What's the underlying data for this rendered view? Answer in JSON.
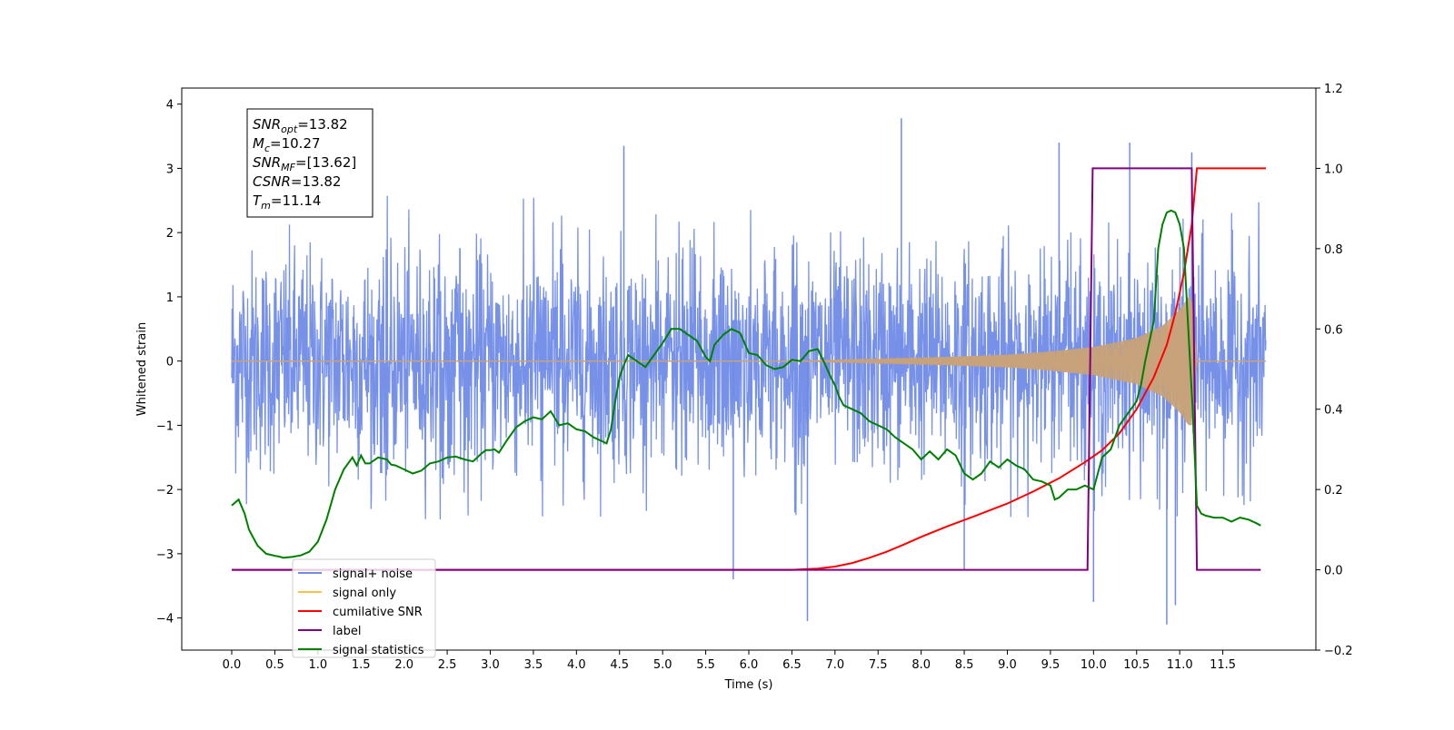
{
  "chart_data": {
    "type": "line",
    "xlabel": "Time (s)",
    "ylabel": "Whitened strain",
    "xlim": [
      -0.58,
      12.58
    ],
    "ylim_left": [
      -4.5,
      4.25
    ],
    "ylim_right": [
      -0.2,
      1.2
    ],
    "x_ticks": [
      "0.0",
      "0.5",
      "1.0",
      "1.5",
      "2.0",
      "2.5",
      "3.0",
      "3.5",
      "4.0",
      "4.5",
      "5.0",
      "5.5",
      "6.0",
      "6.5",
      "7.0",
      "7.5",
      "8.0",
      "8.5",
      "9.0",
      "9.5",
      "10.0",
      "10.5",
      "11.0",
      "11.5"
    ],
    "y_ticks_left": [
      "4",
      "3",
      "2",
      "1",
      "0",
      "−1",
      "−2",
      "−3",
      "−4"
    ],
    "y_ticks_right": [
      "1.2",
      "1.0",
      "0.8",
      "0.6",
      "0.4",
      "0.2",
      "0.0",
      "−0.2"
    ],
    "grid": false,
    "legend_position": "lower-left",
    "colors": {
      "noise": "#6f8be6",
      "signal": "#c7a27a",
      "signal_legend": "#ffbf4d",
      "snr": "#ff0000",
      "label": "#800080",
      "stats": "#008000"
    },
    "annotation": {
      "lines": [
        {
          "sym": "SNR",
          "sub": "opt",
          "val": "=13.82"
        },
        {
          "sym": "M",
          "sub": "c",
          "val": "=10.27"
        },
        {
          "sym": "SNR",
          "sub": "MF",
          "val": "=[13.62]"
        },
        {
          "sym": "CSNR",
          "sub": "",
          "val": "=13.82"
        },
        {
          "sym": "T",
          "sub": "m",
          "val": "=11.14"
        }
      ]
    },
    "series": [
      {
        "name": "signal+ noise",
        "axis": "left",
        "style": "noise",
        "x_range": [
          0.0,
          12.0
        ],
        "typical_envelope": [
          -1.7,
          2.2
        ],
        "notable_peaks": [
          {
            "x": 7.77,
            "y": 3.78
          },
          {
            "x": 10.42,
            "y": 3.4
          },
          {
            "x": 4.55,
            "y": 3.35
          },
          {
            "x": 9.6,
            "y": 3.4
          },
          {
            "x": 11.14,
            "y": 3.25
          },
          {
            "x": 10.85,
            "y": -4.1
          },
          {
            "x": 6.68,
            "y": -4.05
          },
          {
            "x": 10.95,
            "y": -3.8
          },
          {
            "x": 5.82,
            "y": -3.4
          },
          {
            "x": 10.0,
            "y": -3.75
          },
          {
            "x": 8.5,
            "y": -3.25
          }
        ]
      },
      {
        "name": "signal only",
        "axis": "left",
        "style": "chirp",
        "x_range": [
          0.0,
          12.0
        ],
        "merger_time": 11.14,
        "envelope_points": [
          [
            6.5,
            0.0
          ],
          [
            7.0,
            0.02
          ],
          [
            8.0,
            0.05
          ],
          [
            9.0,
            0.1
          ],
          [
            9.5,
            0.15
          ],
          [
            10.0,
            0.22
          ],
          [
            10.5,
            0.36
          ],
          [
            10.8,
            0.55
          ],
          [
            11.0,
            0.8
          ],
          [
            11.1,
            1.0
          ],
          [
            11.14,
            1.0
          ],
          [
            11.2,
            0.0
          ]
        ]
      },
      {
        "name": "cumilative SNR",
        "axis": "right",
        "x": [
          0.0,
          6.5,
          6.8,
          7.0,
          7.2,
          7.4,
          7.6,
          7.8,
          8.0,
          8.3,
          8.6,
          9.0,
          9.3,
          9.6,
          9.9,
          10.1,
          10.3,
          10.5,
          10.7,
          10.85,
          10.95,
          11.05,
          11.14,
          11.2,
          12.0
        ],
        "values": [
          0.0,
          0.0,
          0.003,
          0.008,
          0.017,
          0.03,
          0.045,
          0.063,
          0.082,
          0.108,
          0.132,
          0.165,
          0.195,
          0.228,
          0.268,
          0.298,
          0.34,
          0.4,
          0.48,
          0.56,
          0.64,
          0.74,
          0.86,
          1.0,
          1.0
        ]
      },
      {
        "name": "label",
        "axis": "right",
        "x": [
          0.0,
          9.93,
          9.99,
          11.14,
          11.2,
          11.94
        ],
        "values": [
          0.0,
          0.0,
          1.0,
          1.0,
          0.0,
          0.0
        ]
      },
      {
        "name": "signal statistics",
        "axis": "right",
        "x": [
          0.0,
          0.08,
          0.15,
          0.2,
          0.25,
          0.3,
          0.35,
          0.4,
          0.5,
          0.55,
          0.6,
          0.7,
          0.8,
          0.9,
          1.0,
          1.1,
          1.2,
          1.3,
          1.4,
          1.45,
          1.5,
          1.55,
          1.6,
          1.7,
          1.8,
          1.85,
          1.9,
          2.0,
          2.1,
          2.2,
          2.3,
          2.4,
          2.5,
          2.6,
          2.7,
          2.8,
          2.9,
          2.95,
          3.0,
          3.05,
          3.1,
          3.2,
          3.3,
          3.4,
          3.5,
          3.6,
          3.7,
          3.8,
          3.9,
          4.0,
          4.1,
          4.2,
          4.3,
          4.35,
          4.4,
          4.45,
          4.5,
          4.55,
          4.6,
          4.7,
          4.8,
          4.9,
          5.0,
          5.1,
          5.2,
          5.3,
          5.4,
          5.5,
          5.55,
          5.6,
          5.7,
          5.8,
          5.9,
          6.0,
          6.1,
          6.2,
          6.3,
          6.4,
          6.5,
          6.6,
          6.7,
          6.8,
          6.9,
          6.95,
          7.0,
          7.05,
          7.1,
          7.2,
          7.3,
          7.4,
          7.5,
          7.6,
          7.7,
          7.8,
          7.9,
          8.0,
          8.1,
          8.2,
          8.3,
          8.4,
          8.5,
          8.6,
          8.7,
          8.8,
          8.9,
          9.0,
          9.1,
          9.2,
          9.3,
          9.4,
          9.5,
          9.55,
          9.6,
          9.7,
          9.8,
          9.9,
          10.0,
          10.1,
          10.2,
          10.3,
          10.4,
          10.5,
          10.55,
          10.6,
          10.7,
          10.75,
          10.8,
          10.85,
          10.9,
          10.95,
          11.0,
          11.05,
          11.1,
          11.15,
          11.2,
          11.25,
          11.3,
          11.4,
          11.5,
          11.6,
          11.7,
          11.8,
          11.9,
          11.94
        ],
        "values": [
          0.16,
          0.175,
          0.14,
          0.1,
          0.08,
          0.06,
          0.05,
          0.04,
          0.035,
          0.033,
          0.03,
          0.032,
          0.036,
          0.045,
          0.07,
          0.125,
          0.2,
          0.25,
          0.28,
          0.26,
          0.285,
          0.265,
          0.265,
          0.28,
          0.275,
          0.262,
          0.26,
          0.25,
          0.24,
          0.247,
          0.265,
          0.27,
          0.28,
          0.282,
          0.275,
          0.27,
          0.29,
          0.298,
          0.298,
          0.3,
          0.292,
          0.325,
          0.355,
          0.37,
          0.38,
          0.375,
          0.395,
          0.36,
          0.365,
          0.35,
          0.345,
          0.33,
          0.32,
          0.315,
          0.35,
          0.42,
          0.48,
          0.51,
          0.535,
          0.52,
          0.505,
          0.535,
          0.565,
          0.6,
          0.6,
          0.585,
          0.57,
          0.53,
          0.52,
          0.56,
          0.585,
          0.6,
          0.59,
          0.54,
          0.535,
          0.51,
          0.5,
          0.505,
          0.523,
          0.52,
          0.545,
          0.55,
          0.505,
          0.48,
          0.46,
          0.43,
          0.41,
          0.4,
          0.39,
          0.37,
          0.36,
          0.35,
          0.33,
          0.315,
          0.3,
          0.275,
          0.295,
          0.275,
          0.3,
          0.285,
          0.24,
          0.225,
          0.24,
          0.27,
          0.255,
          0.275,
          0.26,
          0.25,
          0.225,
          0.22,
          0.21,
          0.175,
          0.18,
          0.2,
          0.2,
          0.21,
          0.2,
          0.28,
          0.3,
          0.36,
          0.39,
          0.42,
          0.46,
          0.52,
          0.62,
          0.8,
          0.86,
          0.89,
          0.895,
          0.89,
          0.86,
          0.8,
          0.6,
          0.4,
          0.16,
          0.14,
          0.135,
          0.13,
          0.13,
          0.12,
          0.13,
          0.125,
          0.115,
          0.11
        ]
      }
    ]
  },
  "legend": {
    "items": [
      {
        "label": "signal+ noise",
        "color": "#6f8be6"
      },
      {
        "label": "signal only",
        "color": "#ffbf4d"
      },
      {
        "label": "cumilative SNR",
        "color": "#ff0000"
      },
      {
        "label": "label",
        "color": "#800080"
      },
      {
        "label": "signal statistics",
        "color": "#008000"
      }
    ]
  }
}
